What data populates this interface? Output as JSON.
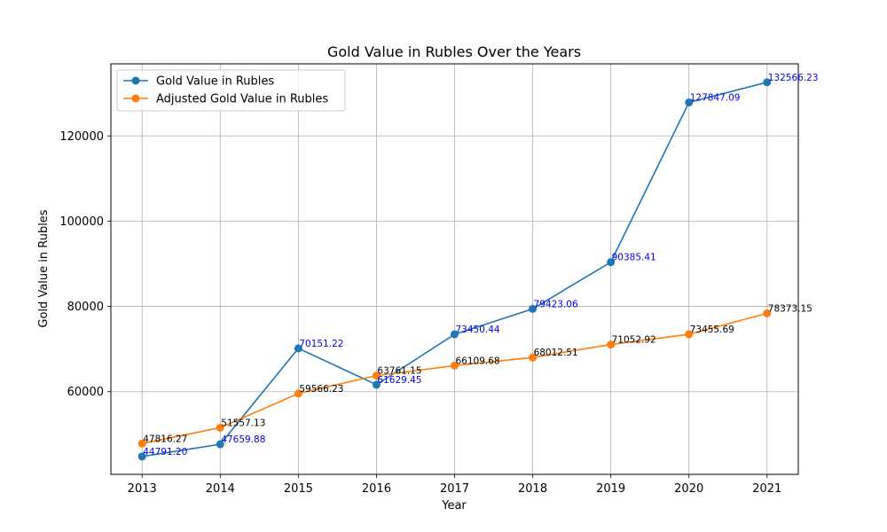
{
  "chart_data": {
    "type": "line",
    "title": "Gold Value in Rubles Over the Years",
    "xlabel": "Year",
    "ylabel": "Gold Value in Rubles",
    "categories": [
      "2013",
      "2014",
      "2015",
      "2016",
      "2017",
      "2018",
      "2019",
      "2020",
      "2021"
    ],
    "x": [
      2013,
      2014,
      2015,
      2016,
      2017,
      2018,
      2019,
      2020,
      2021
    ],
    "xlim": [
      2012.6,
      2021.4
    ],
    "ylim": [
      40600,
      136900
    ],
    "yticks": [
      60000,
      80000,
      100000,
      120000
    ],
    "ytick_labels": [
      "60000",
      "80000",
      "100000",
      "120000"
    ],
    "grid": true,
    "legend_position": "top-left",
    "series": [
      {
        "name": "Gold Value in Rubles",
        "color": "#1f77b4",
        "label_color": "#0000ff",
        "values": [
          44791.2,
          47659.88,
          70151.22,
          61629.45,
          73450.44,
          79423.06,
          90385.41,
          127847.09,
          132566.23
        ],
        "labels": [
          "44791.20",
          "47659.88",
          "70151.22",
          "61629.45",
          "73450.44",
          "79423.06",
          "90385.41",
          "127847.09",
          "132566.23"
        ]
      },
      {
        "name": "Adjusted Gold Value in Rubles",
        "color": "#ff7f0e",
        "label_color": "#000000",
        "values": [
          47816.27,
          51557.13,
          59566.23,
          63761.15,
          66109.68,
          68012.51,
          71052.92,
          73455.69,
          78373.15
        ],
        "labels": [
          "47816.27",
          "51557.13",
          "59566.23",
          "63761.15",
          "66109.68",
          "68012.51",
          "71052.92",
          "73455.69",
          "78373.15"
        ]
      }
    ]
  }
}
